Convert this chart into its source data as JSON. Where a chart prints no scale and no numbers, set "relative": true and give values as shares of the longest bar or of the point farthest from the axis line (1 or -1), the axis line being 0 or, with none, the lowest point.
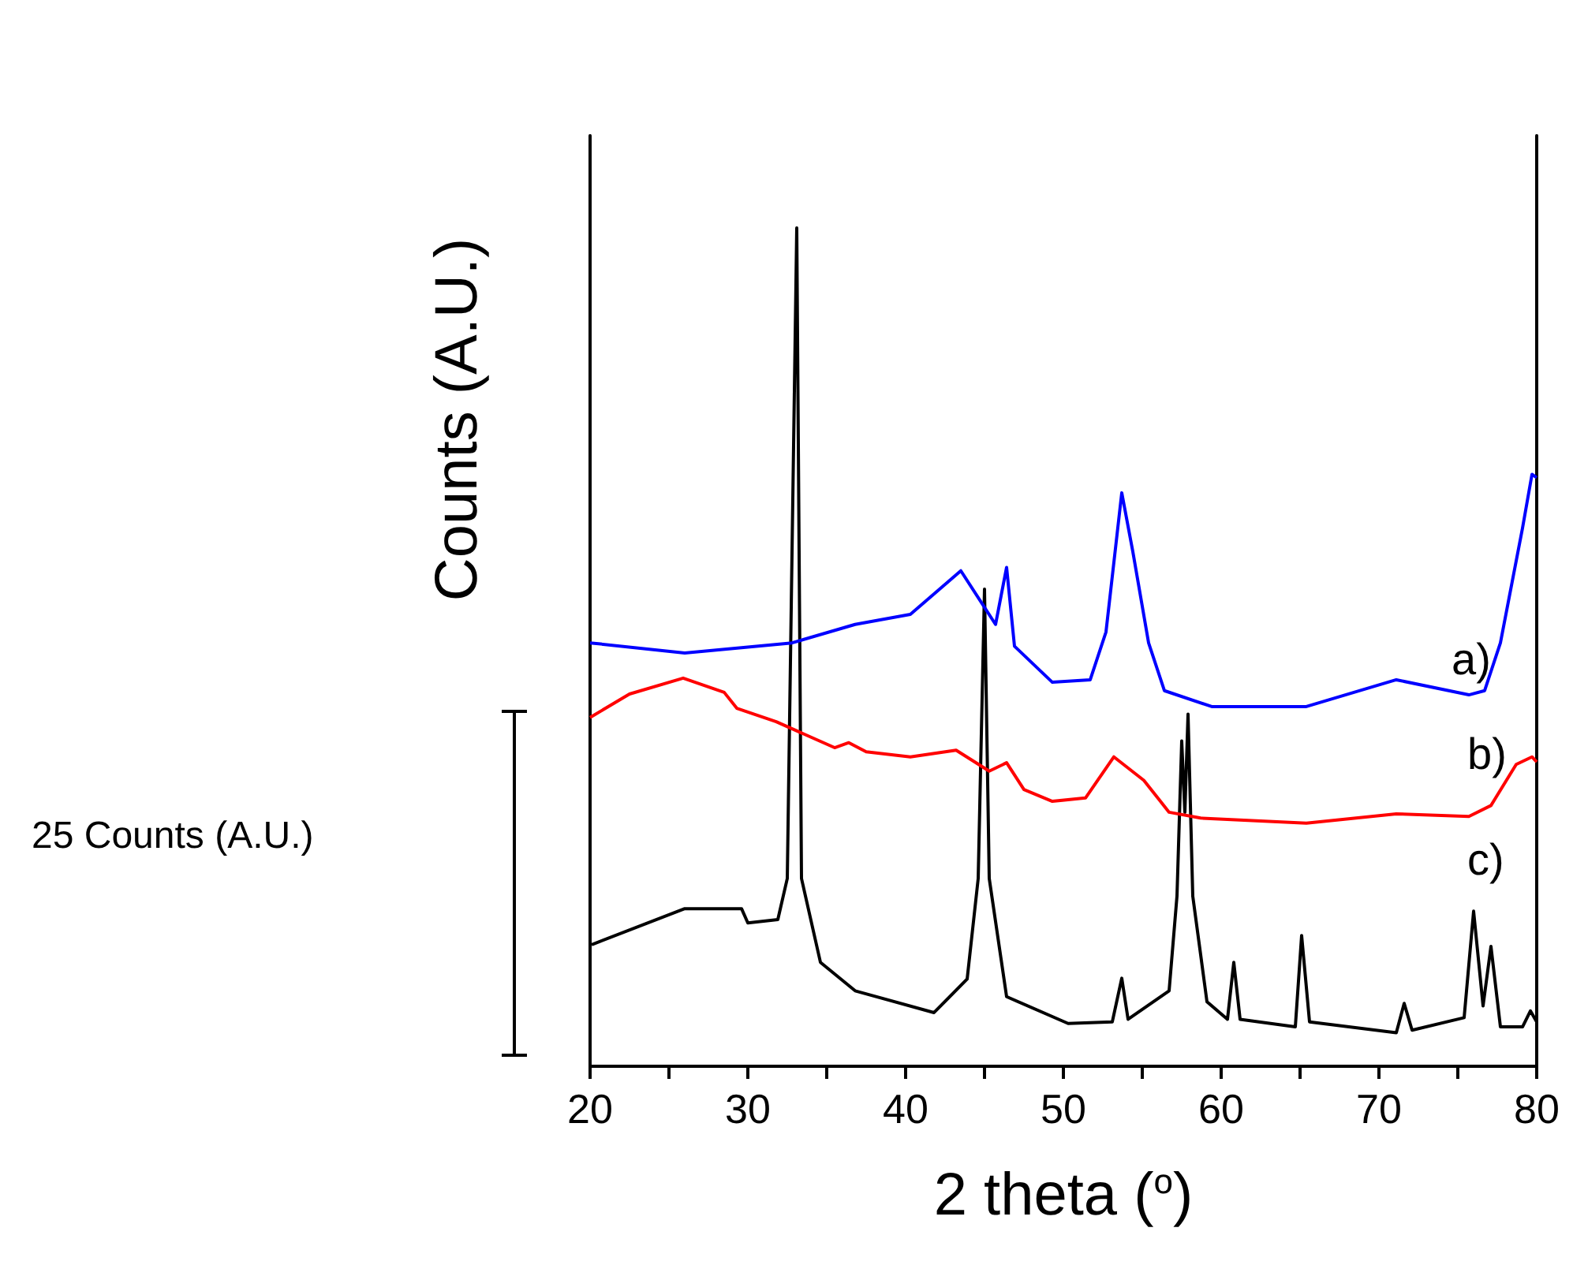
{
  "chart_data": {
    "type": "line",
    "relative": true,
    "xlabel": "2 theta ($^{o}$)",
    "ylabel": "Counts (A.U.)",
    "xlim": [
      20,
      80
    ],
    "xticks": [
      20,
      30,
      40,
      50,
      60,
      70,
      80
    ],
    "grid": false,
    "legend": false,
    "marker": "none",
    "line_style": "solid",
    "annotations": [
      "25 Counts (A.U.)"
    ],
    "series": [
      {
        "name": "a)",
        "color": "#0000ff",
        "x": [
          20,
          26,
          32.8,
          36.8,
          40.3,
          43.5,
          45.7,
          46.4,
          46.9,
          49.3,
          51.7,
          52.7,
          53.7,
          54.4,
          55.4,
          56.4,
          59.4,
          65.4,
          71.1,
          75.7,
          76.7,
          77.7,
          79.1,
          79.7,
          80
        ],
        "values": [
          0.505,
          0.493,
          0.505,
          0.527,
          0.539,
          0.591,
          0.527,
          0.595,
          0.501,
          0.458,
          0.461,
          0.518,
          0.684,
          0.614,
          0.505,
          0.448,
          0.429,
          0.429,
          0.461,
          0.443,
          0.448,
          0.505,
          0.642,
          0.706,
          0.702
        ]
      },
      {
        "name": "b)",
        "color": "#ff0000",
        "x": [
          20,
          22.5,
          25.9,
          28.5,
          29.3,
          31.8,
          35.5,
          36.4,
          37.5,
          40.3,
          43.2,
          45.3,
          46.4,
          47.5,
          49.3,
          51.4,
          53.2,
          55.1,
          56.7,
          58.7,
          65.4,
          71.1,
          75.7,
          77.1,
          78.7,
          79.7,
          80
        ],
        "values": [
          0.416,
          0.444,
          0.463,
          0.446,
          0.427,
          0.411,
          0.38,
          0.386,
          0.375,
          0.369,
          0.377,
          0.352,
          0.362,
          0.33,
          0.316,
          0.32,
          0.369,
          0.341,
          0.303,
          0.296,
          0.29,
          0.301,
          0.298,
          0.311,
          0.36,
          0.369,
          0.363
        ]
      },
      {
        "name": "c)",
        "color": "#000000",
        "x": [
          20.1,
          26,
          29.6,
          30,
          31.9,
          32.5,
          33.1,
          33.4,
          34.6,
          36.8,
          41.8,
          43.9,
          44.6,
          45,
          45.3,
          46.4,
          50.3,
          53.1,
          53.7,
          54.1,
          56.7,
          57.2,
          57.5,
          57.7,
          57.9,
          58.2,
          59.1,
          60.4,
          60.8,
          61.2,
          64.7,
          65.1,
          65.6,
          71.1,
          71.6,
          72.1,
          75.4,
          76,
          76.6,
          77.1,
          77.7,
          79.1,
          79.6,
          80
        ],
        "values": [
          0.145,
          0.188,
          0.188,
          0.171,
          0.175,
          0.224,
          1,
          0.224,
          0.124,
          0.09,
          0.064,
          0.104,
          0.224,
          0.569,
          0.224,
          0.083,
          0.051,
          0.053,
          0.105,
          0.056,
          0.09,
          0.203,
          0.388,
          0.303,
          0.42,
          0.203,
          0.077,
          0.056,
          0.124,
          0.056,
          0.047,
          0.156,
          0.053,
          0.04,
          0.075,
          0.043,
          0.058,
          0.185,
          0.072,
          0.143,
          0.047,
          0.047,
          0.066,
          0.053
        ]
      }
    ]
  }
}
